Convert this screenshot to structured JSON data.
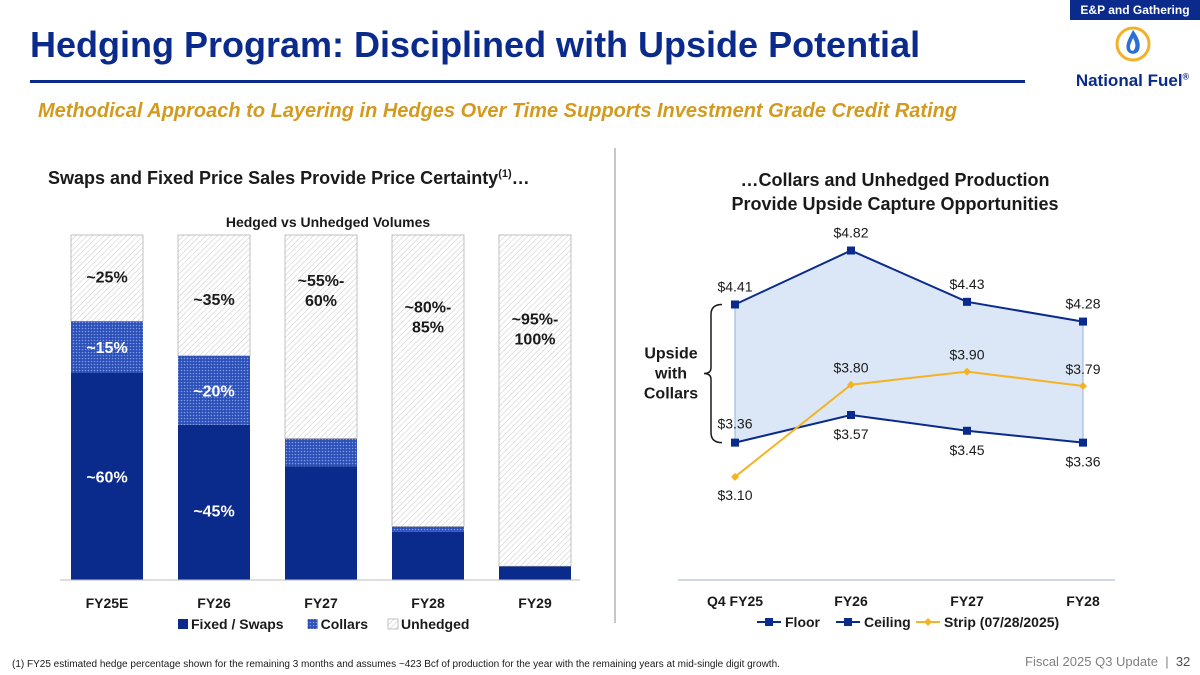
{
  "header": {
    "tag": "E&P and Gathering",
    "title": "Hedging Program: Disciplined with Upside Potential",
    "logo_text": "National Fuel",
    "logo_mark": "®",
    "subtitle": "Methodical Approach to Layering in Hedges Over Time Supports Investment Grade Credit Rating"
  },
  "left_heading": {
    "text": "Swaps and Fixed Price Sales Provide Price Certainty",
    "sup": "(1)",
    "suffix": "…"
  },
  "right_heading": {
    "line1": "…Collars and Unhedged Production",
    "line2": "Provide Upside Capture Opportunities"
  },
  "chart_data": [
    {
      "type": "bar",
      "stacked": true,
      "title": "Hedged vs Unhedged Volumes",
      "categories": [
        "FY25E",
        "FY26",
        "FY27",
        "FY28",
        "FY29"
      ],
      "ylim": [
        0,
        100
      ],
      "series": [
        {
          "name": "Fixed / Swaps",
          "values": [
            60,
            45,
            33,
            14,
            4
          ],
          "color": "#0b2b8c"
        },
        {
          "name": "Collars",
          "values": [
            15,
            20,
            8,
            1.5,
            0
          ],
          "color": "#3a5fc8"
        },
        {
          "name": "Unhedged",
          "values": [
            25,
            35,
            59,
            84.5,
            96
          ],
          "color": "#ffffff"
        }
      ],
      "labels": [
        {
          "category": "FY25E",
          "series": "Fixed / Swaps",
          "text": "~60%",
          "color": "#ffffff"
        },
        {
          "category": "FY25E",
          "series": "Collars",
          "text": "~15%",
          "color": "#ffffff"
        },
        {
          "category": "FY25E",
          "series": "Unhedged",
          "text": "~25%",
          "color": "#1a1a1a"
        },
        {
          "category": "FY26",
          "series": "Fixed / Swaps",
          "text": "~45%",
          "color": "#ffffff"
        },
        {
          "category": "FY26",
          "series": "Collars",
          "text": "~20%",
          "color": "#ffffff"
        },
        {
          "category": "FY26",
          "series": "Unhedged",
          "text": "~35%",
          "color": "#1a1a1a"
        },
        {
          "category": "FY27",
          "series": "Unhedged",
          "text": "~55%-",
          "text2": "60%",
          "color": "#1a1a1a"
        },
        {
          "category": "FY28",
          "series": "Unhedged",
          "text": "~80%-",
          "text2": "85%",
          "color": "#1a1a1a"
        },
        {
          "category": "FY29",
          "series": "Unhedged",
          "text": "~95%-",
          "text2": "100%",
          "color": "#1a1a1a"
        }
      ],
      "legend": "bottom"
    },
    {
      "type": "line",
      "categories": [
        "Q4 FY25",
        "FY26",
        "FY27",
        "FY28"
      ],
      "ylim": [
        3.0,
        4.9
      ],
      "series": [
        {
          "name": "Floor",
          "values": [
            3.36,
            3.57,
            3.45,
            3.36
          ],
          "labels": [
            "$3.36",
            "$3.57",
            "$3.45",
            "$3.36"
          ],
          "color": "#0b2b8c"
        },
        {
          "name": "Ceiling",
          "values": [
            4.41,
            4.82,
            4.43,
            4.28
          ],
          "labels": [
            "$4.41",
            "$4.82",
            "$4.43",
            "$4.28"
          ],
          "color": "#0b2b8c"
        },
        {
          "name": "Strip (07/28/2025)",
          "values": [
            3.1,
            3.8,
            3.9,
            3.79
          ],
          "labels": [
            "$3.10",
            "$3.80",
            "$3.90",
            "$3.79"
          ],
          "color": "#f5b324"
        }
      ],
      "annotation": {
        "line1": "Upside",
        "line2": "with",
        "line3": "Collars"
      },
      "legend": "bottom"
    }
  ],
  "footnote": "(1) FY25 estimated hedge percentage shown for the remaining 3 months and assumes ~423 Bcf of production for the year with the remaining years at mid-single digit growth.",
  "footer": {
    "text": "Fiscal 2025 Q3 Update",
    "separator": "|",
    "page": "32"
  }
}
